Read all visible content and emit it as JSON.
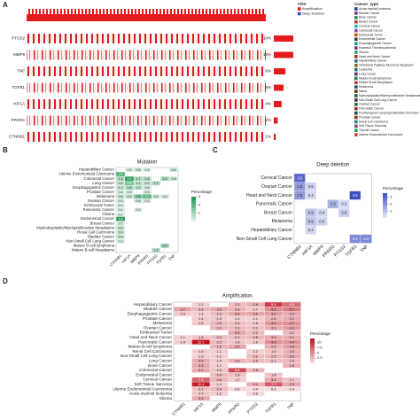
{
  "chart_data": [
    {
      "type": "oncoprint",
      "label": "A",
      "genes": [
        "PTGS2",
        "MMP9",
        "TNF",
        "TGFB1",
        "HIF1A",
        "PPARG",
        "CTNNB1"
      ],
      "values": [
        10,
        10,
        6,
        5,
        4,
        2,
        1
      ],
      "value_labels": [
        "10%",
        "10%",
        "6%",
        "5%",
        "4%",
        "2%",
        "1%"
      ],
      "color": "#e41a1c",
      "legends": [
        {
          "title": "CNV",
          "items": [
            {
              "name": "Amplification",
              "color": "#e41a1c"
            },
            {
              "name": "Deep Deletion",
              "color": "#3b4cc0"
            }
          ]
        },
        {
          "title": "Cancer_type",
          "items": [
            {
              "name": "Acute myeloid leukemia",
              "color": "#1f3d8f"
            },
            {
              "name": "Bladder Cancer",
              "color": "#7b2d8f"
            },
            {
              "name": "Bone Cancer",
              "color": "#2e8b57"
            },
            {
              "name": "Breast Cancer",
              "color": "#c0392b"
            },
            {
              "name": "Cervical Cancer",
              "color": "#1abc9c"
            },
            {
              "name": "Colorectal Cancer",
              "color": "#8e44ad"
            },
            {
              "name": "Embryonal Tumor",
              "color": "#d35400"
            },
            {
              "name": "Endometrial Cancer",
              "color": "#2c3e50"
            },
            {
              "name": "Esophagogastric Cancer",
              "color": "#16a085"
            },
            {
              "name": "Essential Thrombocythemia",
              "color": "#6c3483"
            },
            {
              "name": "Glioma",
              "color": "#27ae60"
            },
            {
              "name": "Head and Neck Cancer",
              "color": "#a93226"
            },
            {
              "name": "Hepatobiliary Cancer",
              "color": "#2874a6"
            },
            {
              "name": "Intraductal Papillary Mucinous Neoplasm",
              "color": "#7d6608"
            },
            {
              "name": "Leukemia",
              "color": "#117864"
            },
            {
              "name": "Lung Cancer",
              "color": "#5b2c6f"
            },
            {
              "name": "Mature B-cell lymphoma",
              "color": "#1e8449"
            },
            {
              "name": "Mature B-cell Neoplasms",
              "color": "#b03a2e"
            },
            {
              "name": "Melanoma",
              "color": "#1b4f72"
            },
            {
              "name": "Mixed",
              "color": "#6e2c00"
            },
            {
              "name": "Myelodysplastic/Myeloproliferative Neoplasms",
              "color": "#0e6251"
            },
            {
              "name": "Non-Small Cell Lung Cancer",
              "color": "#4a235a"
            },
            {
              "name": "Ovarian Cancer",
              "color": "#196f3d"
            },
            {
              "name": "Pancreatic Cancer",
              "color": "#943126"
            },
            {
              "name": "Posttransplant Lymphoproliferative Disorders",
              "color": "#154360"
            },
            {
              "name": "Prostate Cancer",
              "color": "#873600"
            },
            {
              "name": "Renal Cell Carcinoma",
              "color": "#138d75"
            },
            {
              "name": "Soft Tissue Sarcoma",
              "color": "#76448a"
            },
            {
              "name": "Thyroid Cancer",
              "color": "#229954"
            },
            {
              "name": "Uterine Endometrioid Carcinoma",
              "color": "#cb4335"
            }
          ]
        }
      ]
    },
    {
      "type": "heatmap",
      "label": "B",
      "title": "Mutation",
      "color": "#1a9850",
      "color_lim": [
        0,
        6
      ],
      "legend_title": "Percentage",
      "legend_ticks": [
        2,
        4,
        6
      ],
      "columns": [
        "CTNNB1",
        "HIF1A",
        "MMP9",
        "PPARG",
        "PTGS2",
        "TGFB1",
        "TNF"
      ],
      "rows": [
        "Hepatobiliary Cancer",
        "Uterine Endometrioid Carcinoma",
        "Colorectal Cancer",
        "Lung Cancer",
        "Esophagogastric Cancer",
        "Prostate Cancer",
        "Melanoma",
        "Ovarian Cancer",
        "Embryonal Tumor",
        "Pancreatic Cancer",
        "Glioma",
        "Endometrial Cancer",
        "Breast Cancer",
        "Myelodysplastic/Myeloproliferative Neoplasms",
        "Renal Cell Carcinoma",
        "Bladder Cancer",
        "Non-Small Cell Lung Cancer",
        "Mature B-cell lymphoma",
        "Mature B-cell Neoplasms"
      ],
      "values": [
        [
          null,
          0.3,
          0.6,
          0.3,
          null,
          null,
          0.6
        ],
        [
          4.5,
          null,
          null,
          null,
          null,
          null,
          null
        ],
        [
          1.4,
          5.8,
          1.7,
          1.6,
          null,
          1.9,
          0.8
        ],
        [
          0.9,
          3.4,
          1.1,
          0.9,
          1.7,
          null,
          null
        ],
        [
          1.1,
          1.6,
          1.2,
          0.5,
          null,
          null,
          null
        ],
        [
          0.4,
          0.3,
          null,
          0.3,
          null,
          null,
          null
        ],
        [
          0.9,
          0.9,
          2.9,
          4.2,
          0.6,
          0.5,
          null
        ],
        [
          0.3,
          null,
          0.6,
          0.3,
          null,
          null,
          null
        ],
        [
          0.3,
          null,
          null,
          null,
          null,
          null,
          null
        ],
        [
          0.2,
          null,
          0.2,
          null,
          null,
          null,
          null
        ],
        [
          0.1,
          null,
          null,
          null,
          null,
          null,
          null
        ],
        [
          5.8,
          null,
          null,
          null,
          null,
          null,
          null
        ],
        [
          0.2,
          null,
          null,
          null,
          null,
          null,
          null
        ],
        [
          0.9,
          null,
          null,
          null,
          null,
          null,
          null
        ],
        [
          0.9,
          null,
          null,
          null,
          null,
          null,
          null
        ],
        [
          0.9,
          null,
          null,
          null,
          null,
          null,
          null
        ],
        [
          0.3,
          null,
          null,
          null,
          null,
          null,
          null
        ],
        [
          null,
          null,
          null,
          null,
          null,
          2.2,
          null
        ],
        [
          null,
          null,
          null,
          null,
          1.5,
          null,
          null
        ]
      ]
    },
    {
      "type": "heatmap",
      "label": "C",
      "title": "Deep deletion",
      "color": "#3b4cc0",
      "color_lim": [
        0,
        3.6
      ],
      "legend_title": "Percentage",
      "legend_ticks": [
        1,
        2,
        3
      ],
      "columns": [
        "CTNNB1",
        "HIF1A",
        "MMP9",
        "PPARG",
        "PTGS2",
        "TGFB1",
        "TNF"
      ],
      "rows": [
        "Cervical Cancer",
        "Ovarian Cancer",
        "Head and Neck Cancer",
        "Pancreatic Cancer",
        "Breast Cancer",
        "Melanoma",
        "Hepatobiliary Cancer",
        "Non-Small Cell Lung Cancer"
      ],
      "values": [
        [
          3,
          null,
          null,
          null,
          null,
          null,
          null
        ],
        [
          1.8,
          0.5,
          null,
          null,
          null,
          null,
          null
        ],
        [
          1.8,
          0.4,
          null,
          null,
          null,
          3.6,
          null
        ],
        [
          null,
          null,
          null,
          1.3,
          0.3,
          null,
          null
        ],
        [
          null,
          0.9,
          0.4,
          null,
          0.6,
          null,
          null
        ],
        [
          null,
          0.9,
          0.5,
          null,
          null,
          null,
          null
        ],
        [
          null,
          0.4,
          null,
          null,
          null,
          null,
          null
        ],
        [
          null,
          null,
          null,
          null,
          null,
          2.2,
          2.2
        ]
      ],
      "value_labels": [
        [
          "3.0",
          null,
          null,
          null,
          null,
          null,
          null
        ],
        [
          "1.8",
          "0.5",
          null,
          null,
          null,
          null,
          null
        ],
        [
          "1.8",
          "0.4",
          null,
          null,
          null,
          "3.6",
          null
        ],
        [
          null,
          null,
          null,
          "1.3",
          "0.3",
          null,
          null
        ],
        [
          null,
          "0.9",
          "0.4",
          null,
          "0.6",
          null,
          null
        ],
        [
          null,
          "0.9",
          "0.5",
          null,
          null,
          null,
          null
        ],
        [
          null,
          "0.4",
          null,
          null,
          null,
          null,
          null
        ],
        [
          null,
          null,
          null,
          null,
          null,
          "2.2",
          "2.2"
        ]
      ]
    },
    {
      "type": "heatmap",
      "label": "D",
      "title": "Amplification",
      "color": "#c0121e",
      "color_lim": [
        0,
        12
      ],
      "legend_title": "Percentage",
      "legend_ticks": [
        2.5,
        5,
        7.5,
        10
      ],
      "columns": [
        "CTNNB1",
        "HIF1A",
        "MMP9",
        "PPARG",
        "PTGS2",
        "TGFB1",
        "TNF"
      ],
      "rows": [
        "Hepatobiliary Cancer",
        "Bladder Cancer",
        "Esophagogastric Cancer",
        "Prostate Cancer",
        "Melanoma",
        "Ovarian Cancer",
        "Embryonal Tumor",
        "Head and Neck Cancer",
        "Pancreatic Cancer",
        "Mature B-cell lymphoma",
        "Renal Cell Carcinoma",
        "Non-Small Cell Lung Cancer",
        "Lung Cancer",
        "Bone Cancer",
        "Colorectal Cancer",
        "Endometrial Cancer",
        "Cervical Cancer",
        "Soft Tissue Sarcoma",
        "Uterine Endometrioid Carcinoma",
        "Acute myeloid leukemia",
        "Glioma"
      ],
      "values": [
        [
          null,
          1.1,
          null,
          2.3,
          2.9,
          9.5,
          6.8
        ],
        [
          3.7,
          2.5,
          3.3,
          2.8,
          1.7,
          5.2,
          5.7
        ],
        [
          1.5,
          1.3,
          2.3,
          3.4,
          3.6,
          3.9,
          3.3
        ],
        [
          null,
          1.4,
          1.5,
          1.1,
          1.1,
          2.6,
          3.1
        ],
        [
          null,
          1.5,
          2.6,
          2.3,
          1.8,
          4.4,
          4.7
        ],
        [
          null,
          null,
          2.4,
          2.3,
          2.1,
          3.1,
          4.1
        ],
        [
          null,
          null,
          null,
          3.3,
          2.2,
          null,
          2.2
        ],
        [
          1.1,
          1.8,
          2.2,
          2.2,
          2.6,
          3.3,
          3.1
        ],
        [
          1.4,
          12.1,
          2.2,
          1.8,
          1.6,
          4.8,
          4.4
        ],
        [
          null,
          null,
          2.6,
          3.4,
          null,
          2.9,
          3.9
        ],
        [
          null,
          1.3,
          1.1,
          null,
          1.2,
          1.9,
          2.9
        ],
        [
          null,
          1.3,
          1.1,
          null,
          2.2,
          2.5,
          3.3
        ],
        [
          null,
          3.3,
          1.4,
          2.8,
          2.5,
          2.1,
          2.4
        ],
        [
          null,
          3.3,
          1.1,
          null,
          null,
          null,
          2.8
        ],
        [
          null,
          3.3,
          1.9,
          8.6,
          2.6,
          null,
          null
        ],
        [
          null,
          null,
          2.4,
          1.8,
          null,
          1.8,
          null
        ],
        [
          null,
          7.3,
          2.6,
          1.2,
          null,
          3.4,
          1.7
        ],
        [
          null,
          11.4,
          1.2,
          null,
          3.1,
          7.7,
          3.3
        ],
        [
          null,
          2.1,
          2.4,
          0.6,
          0.4,
          0.4,
          0.4
        ],
        [
          null,
          1.7,
          1.2,
          null,
          0.6,
          null,
          null
        ],
        [
          null,
          3.3,
          null,
          null,
          null,
          null,
          null
        ]
      ]
    }
  ]
}
